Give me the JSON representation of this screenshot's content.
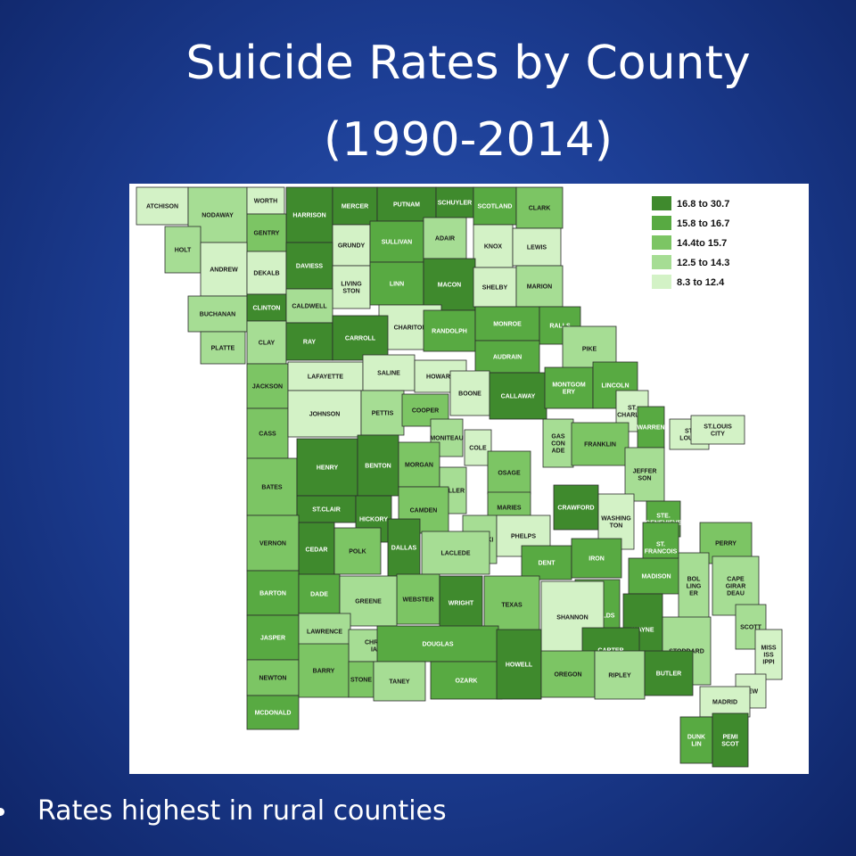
{
  "slide": {
    "title_line1": "Suicide Rates by County",
    "title_line2": "(1990-2014)",
    "bullet": "Rates highest in rural counties"
  },
  "legend": {
    "classes": [
      {
        "label": "16.8 to 30.7",
        "color": "#3f8a2d"
      },
      {
        "label": "15.8 to 16.7",
        "color": "#58aa42"
      },
      {
        "label": "14.4to 15.7",
        "color": "#7cc564"
      },
      {
        "label": "12.5 to 14.3",
        "color": "#a6dd94"
      },
      {
        "label": "8.3 to 12.4",
        "color": "#d3f2c6"
      }
    ]
  },
  "counties": [
    {
      "name": "ATCHISON",
      "cls": 4
    },
    {
      "name": "NODAWAY",
      "cls": 3
    },
    {
      "name": "WORTH",
      "cls": 4
    },
    {
      "name": "HARRISON",
      "cls": 0
    },
    {
      "name": "MERCER",
      "cls": 0
    },
    {
      "name": "PUTNAM",
      "cls": 0
    },
    {
      "name": "SCHUYLER",
      "cls": 0
    },
    {
      "name": "SCOTLAND",
      "cls": 1
    },
    {
      "name": "CLARK",
      "cls": 2
    },
    {
      "name": "HOLT",
      "cls": 3
    },
    {
      "name": "GENTRY",
      "cls": 2
    },
    {
      "name": "GRUNDY",
      "cls": 4
    },
    {
      "name": "SULLIVAN",
      "cls": 1
    },
    {
      "name": "ADAIR",
      "cls": 3
    },
    {
      "name": "KNOX",
      "cls": 4
    },
    {
      "name": "LEWIS",
      "cls": 4
    },
    {
      "name": "ANDREW",
      "cls": 4
    },
    {
      "name": "DEKALB",
      "cls": 4
    },
    {
      "name": "DAVIESS",
      "cls": 0
    },
    {
      "name": "LIVING STON",
      "cls": 4
    },
    {
      "name": "LINN",
      "cls": 1
    },
    {
      "name": "MACON",
      "cls": 0
    },
    {
      "name": "SHELBY",
      "cls": 4
    },
    {
      "name": "MARION",
      "cls": 3
    },
    {
      "name": "BUCHANAN",
      "cls": 3
    },
    {
      "name": "CLINTON",
      "cls": 0
    },
    {
      "name": "CALDWELL",
      "cls": 3
    },
    {
      "name": "CHARITON",
      "cls": 4
    },
    {
      "name": "RANDOLPH",
      "cls": 1
    },
    {
      "name": "MONROE",
      "cls": 1
    },
    {
      "name": "RALLS",
      "cls": 1
    },
    {
      "name": "PLATTE",
      "cls": 3
    },
    {
      "name": "CLAY",
      "cls": 3
    },
    {
      "name": "RAY",
      "cls": 0
    },
    {
      "name": "CARROLL",
      "cls": 0
    },
    {
      "name": "AUDRAIN",
      "cls": 1
    },
    {
      "name": "PIKE",
      "cls": 3
    },
    {
      "name": "JACKSON",
      "cls": 2
    },
    {
      "name": "LAFAYETTE",
      "cls": 4
    },
    {
      "name": "SALINE",
      "cls": 4
    },
    {
      "name": "HOWARD",
      "cls": 4
    },
    {
      "name": "BOONE",
      "cls": 4
    },
    {
      "name": "CALLAWAY",
      "cls": 0
    },
    {
      "name": "MONTGOM ERY",
      "cls": 1
    },
    {
      "name": "LINCOLN",
      "cls": 1
    },
    {
      "name": "ST. CHARLES",
      "cls": 4
    },
    {
      "name": "CASS",
      "cls": 2
    },
    {
      "name": "JOHNSON",
      "cls": 4
    },
    {
      "name": "PETTIS",
      "cls": 3
    },
    {
      "name": "COOPER",
      "cls": 2
    },
    {
      "name": "MONITEAU",
      "cls": 3
    },
    {
      "name": "WARREN",
      "cls": 1
    },
    {
      "name": "ST. LOUIS",
      "cls": 4
    },
    {
      "name": "ST.LOUIS CITY",
      "cls": 4
    },
    {
      "name": "COLE",
      "cls": 4
    },
    {
      "name": "GAS CON ADE",
      "cls": 3
    },
    {
      "name": "FRANKLIN",
      "cls": 2
    },
    {
      "name": "BATES",
      "cls": 2
    },
    {
      "name": "HENRY",
      "cls": 0
    },
    {
      "name": "BENTON",
      "cls": 0
    },
    {
      "name": "MORGAN",
      "cls": 2
    },
    {
      "name": "MILLER",
      "cls": 3
    },
    {
      "name": "OSAGE",
      "cls": 2
    },
    {
      "name": "JEFFER SON",
      "cls": 3
    },
    {
      "name": "ST.CLAIR",
      "cls": 0
    },
    {
      "name": "HICKORY",
      "cls": 0
    },
    {
      "name": "CAMDEN",
      "cls": 2
    },
    {
      "name": "MARIES",
      "cls": 2
    },
    {
      "name": "CRAWFORD",
      "cls": 0
    },
    {
      "name": "WASHING TON",
      "cls": 4
    },
    {
      "name": "STE. GENEVIEVE",
      "cls": 1
    },
    {
      "name": "VERNON",
      "cls": 2
    },
    {
      "name": "CEDAR",
      "cls": 0
    },
    {
      "name": "DALLAS",
      "cls": 0
    },
    {
      "name": "PULASKI",
      "cls": 3
    },
    {
      "name": "PHELPS",
      "cls": 4
    },
    {
      "name": "ST. FRANCOIS",
      "cls": 1
    },
    {
      "name": "PERRY",
      "cls": 2
    },
    {
      "name": "POLK",
      "cls": 2
    },
    {
      "name": "LACLEDE",
      "cls": 3
    },
    {
      "name": "DENT",
      "cls": 1
    },
    {
      "name": "IRON",
      "cls": 1
    },
    {
      "name": "MADISON",
      "cls": 1
    },
    {
      "name": "BARTON",
      "cls": 1
    },
    {
      "name": "DADE",
      "cls": 1
    },
    {
      "name": "WEBSTER",
      "cls": 2
    },
    {
      "name": "WRIGHT",
      "cls": 0
    },
    {
      "name": "TEXAS",
      "cls": 2
    },
    {
      "name": "REYNOLDS",
      "cls": 1
    },
    {
      "name": "BOL LING ER",
      "cls": 3
    },
    {
      "name": "CAPE GIRAR DEAU",
      "cls": 3
    },
    {
      "name": "JASPER",
      "cls": 1
    },
    {
      "name": "GREENE",
      "cls": 3
    },
    {
      "name": "LAWRENCE",
      "cls": 3
    },
    {
      "name": "SHANNON",
      "cls": 4
    },
    {
      "name": "WAYNE",
      "cls": 0
    },
    {
      "name": "SCOTT",
      "cls": 3
    },
    {
      "name": "NEWTON",
      "cls": 2
    },
    {
      "name": "CHRIST IAN",
      "cls": 3
    },
    {
      "name": "DOUGLAS",
      "cls": 1
    },
    {
      "name": "CARTER",
      "cls": 0
    },
    {
      "name": "STODDARD",
      "cls": 3
    },
    {
      "name": "MISS ISS IPPI",
      "cls": 4
    },
    {
      "name": "MCDONALD",
      "cls": 1
    },
    {
      "name": "BARRY",
      "cls": 2
    },
    {
      "name": "STONE",
      "cls": 2
    },
    {
      "name": "TANEY",
      "cls": 3
    },
    {
      "name": "OZARK",
      "cls": 1
    },
    {
      "name": "HOWELL",
      "cls": 0
    },
    {
      "name": "OREGON",
      "cls": 2
    },
    {
      "name": "RIPLEY",
      "cls": 3
    },
    {
      "name": "BUTLER",
      "cls": 0
    },
    {
      "name": "NEW",
      "cls": 4
    },
    {
      "name": "MADRID",
      "cls": 4
    },
    {
      "name": "DUNK LIN",
      "cls": 1
    },
    {
      "name": "PEMI SCOT",
      "cls": 0
    }
  ]
}
